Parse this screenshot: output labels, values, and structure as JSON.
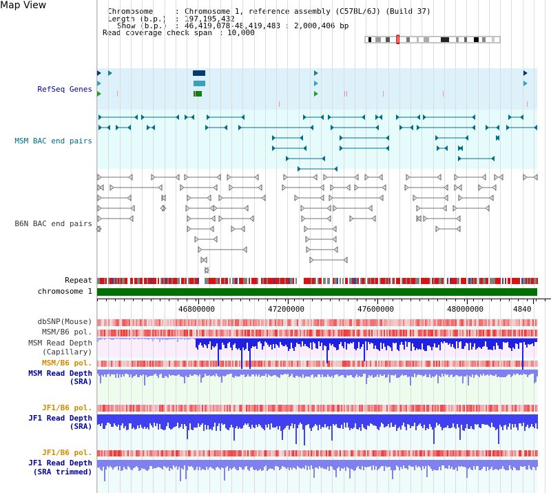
{
  "page": {
    "title": "Map View"
  },
  "info": {
    "chromosome_label": "Chromosome",
    "chromosome_value": "Chromosome 1, reference assembly (C57BL/6J) (Build 37)",
    "length_label": "Length (b.p.)",
    "length_value": "197,195,432",
    "show_label": "Show (b.p.)",
    "show_value": "46,419,078-48,419,483 : 2,000,406 bp",
    "span_label": "Read coverage check span",
    "span_value": "10,000"
  },
  "tracks": {
    "refseq": "RefSeq Genes",
    "msm_bac": "MSM BAC end pairs",
    "b6n_bac": "B6N BAC end pairs",
    "repeat": "Repeat",
    "chromosome": "chromosome 1",
    "dbsnp": "dbSNP(Mouse)",
    "msm_pol_1": "MSM/B6 pol.",
    "msm_depth_cap_1": "MSM Read Depth",
    "msm_depth_cap_2": "(Capillary)",
    "msm_pol_2": "MSM/B6 pol.",
    "msm_depth_sra_1": "MSM Read Depth",
    "msm_depth_sra_2": "(SRA)",
    "jf1_pol_1": "JF1/B6 pol.",
    "jf1_depth_1": "JF1 Read Depth",
    "jf1_depth_2": "(SRA)",
    "jf1_pol_2": "JF1/B6 pol.",
    "jf1_trim_1": "JF1 Read Depth",
    "jf1_trim_2": "(SRA trimmed)"
  },
  "axis": {
    "ticks": [
      "46800000",
      "47200000",
      "47600000",
      "48000000",
      "4840"
    ]
  },
  "colors": {
    "refseq_bg": "#ddf1fb",
    "msm_bac_bg": "#e6fbfb",
    "depth_bg": "#f0fcfc",
    "capillary_bg": "#fbeefc",
    "msm_sra_bg": "#eefcee",
    "label_blue": "#0000a0",
    "label_teal": "#006a80",
    "label_gray": "#333333",
    "label_orange": "#d08a00",
    "chrom_green": "#007000",
    "bar_blue": "#4040f0",
    "bar_light_blue": "#8080f0",
    "pol_red": "#f03030"
  }
}
